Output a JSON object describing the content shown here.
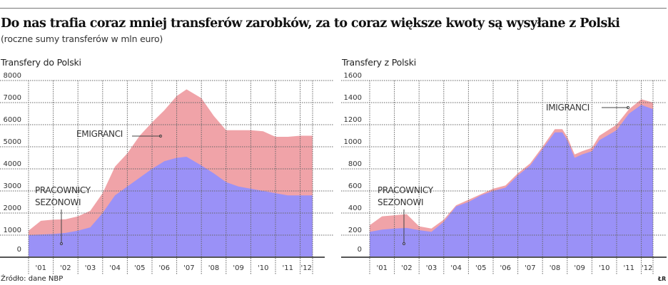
{
  "header": {
    "title": "Do nas trafia coraz mniej transferów zarobków, za to coraz większe kwoty są wysyłane z Polski",
    "subtitle": "(roczne sumy transferów w mln euro)"
  },
  "footer": {
    "source": "Źródło: dane NBP",
    "credit": "ŁR"
  },
  "colors": {
    "emigranci_area": "#f0a3a8",
    "pracownicy_area": "#9a91f7",
    "grid": "#666666",
    "axis": "#555555"
  },
  "chart_data": [
    {
      "type": "area",
      "stacked": true,
      "title": "Transfery do Polski",
      "xlabel": "",
      "ylabel": "mln euro",
      "ylim": [
        0,
        8000
      ],
      "yticks": [
        "0",
        "1000",
        "2000",
        "3000",
        "4000",
        "5000",
        "6000",
        "7000",
        "8000"
      ],
      "categories": [
        "'01",
        "'02",
        "'03",
        "'04",
        "'05",
        "'06",
        "'07",
        "'08",
        "'09",
        "'10",
        "'11",
        "'12"
      ],
      "x": [
        2001,
        2001.5,
        2002,
        2002.5,
        2003,
        2003.5,
        2004,
        2004.5,
        2005,
        2005.5,
        2006,
        2006.5,
        2007,
        2007.4,
        2008,
        2008.5,
        2009,
        2009.5,
        2010,
        2010.5,
        2011,
        2011.5,
        2012,
        2012.5
      ],
      "series": [
        {
          "name": "PRACOWNICY SEZONOWI",
          "values": [
            1000,
            1030,
            1050,
            1100,
            1200,
            1350,
            2000,
            2800,
            3200,
            3600,
            4000,
            4350,
            4500,
            4550,
            4150,
            3800,
            3400,
            3200,
            3100,
            3000,
            2900,
            2800,
            2800,
            2800
          ]
        },
        {
          "name": "EMIGRANCI",
          "values": [
            200,
            620,
            650,
            620,
            650,
            750,
            900,
            1300,
            1500,
            1900,
            2100,
            2300,
            2800,
            3050,
            3050,
            2600,
            2350,
            2550,
            2650,
            2700,
            2550,
            2650,
            2700,
            2700
          ]
        }
      ],
      "totals": [
        1200,
        1650,
        1700,
        1720,
        1850,
        2100,
        2900,
        4100,
        4700,
        5500,
        6100,
        6650,
        7300,
        7600,
        7200,
        6400,
        5750,
        5750,
        5750,
        5700,
        5450,
        5450,
        5500,
        5500
      ],
      "annotations": [
        "EMIGRANCI",
        "PRACOWNICY SEZONOWI"
      ],
      "grid": true
    },
    {
      "type": "area",
      "stacked": true,
      "title": "Transfery z Polski",
      "xlabel": "",
      "ylabel": "mln euro",
      "ylim": [
        0,
        1600
      ],
      "yticks": [
        "0",
        "200",
        "400",
        "600",
        "800",
        "1000",
        "1200",
        "1400",
        "1600"
      ],
      "categories": [
        "'01",
        "'02",
        "'03",
        "'04",
        "'05",
        "'06",
        "'07",
        "'08",
        "'09",
        "'10",
        "'11",
        "'12"
      ],
      "x": [
        2001,
        2001.5,
        2002,
        2002.5,
        2003,
        2003.5,
        2004,
        2004.5,
        2005,
        2005.5,
        2006,
        2006.5,
        2007,
        2007.5,
        2008,
        2008.5,
        2008.8,
        2009,
        2009.3,
        2009.6,
        2010,
        2010.3,
        2011,
        2011.5,
        2012,
        2012.5
      ],
      "series": [
        {
          "name": "PRACOWNICY SEZONOWI",
          "values": [
            230,
            250,
            260,
            265,
            245,
            230,
            320,
            460,
            500,
            560,
            600,
            630,
            740,
            830,
            980,
            1130,
            1130,
            1060,
            900,
            930,
            960,
            1060,
            1150,
            1300,
            1380,
            1340
          ]
        },
        {
          "name": "IMIGRANCI",
          "values": [
            60,
            120,
            120,
            125,
            35,
            30,
            20,
            10,
            20,
            10,
            20,
            20,
            20,
            20,
            20,
            30,
            30,
            30,
            30,
            30,
            30,
            40,
            50,
            40,
            50,
            60
          ]
        }
      ],
      "totals": [
        290,
        370,
        380,
        390,
        280,
        260,
        340,
        470,
        520,
        570,
        620,
        650,
        760,
        850,
        1000,
        1160,
        1160,
        1090,
        930,
        960,
        990,
        1100,
        1200,
        1340,
        1430,
        1400
      ],
      "annotations": [
        "IMIGRANCI",
        "PRACOWNICY SEZONOWI"
      ],
      "grid": true
    }
  ],
  "panels": {
    "left": {
      "title": "Transfery do Polski",
      "label_emigranci": "EMIGRANCI",
      "label_pracownicy_1": "PRACOWNICY",
      "label_pracownicy_2": "SEZONOWI"
    },
    "right": {
      "title": "Transfery z Polski",
      "label_imigranci": "IMIGRANCI",
      "label_pracownicy_1": "PRACOWNICY",
      "label_pracownicy_2": "SEZONOWI"
    }
  }
}
